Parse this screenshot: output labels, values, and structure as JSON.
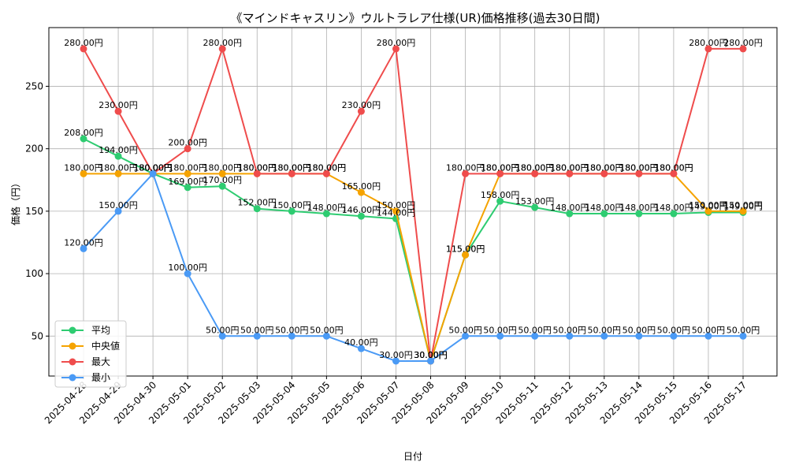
{
  "chart_data": {
    "type": "line",
    "title": "《マインドキャスリン》ウルトラレア仕様(UR)価格推移(過去30日間)",
    "xlabel": "日付",
    "ylabel": "価格（円）",
    "ylim": [
      18,
      297
    ],
    "yticks": [
      50,
      100,
      150,
      200,
      250
    ],
    "grid": true,
    "legend_position": "lower-left",
    "label_suffix": "円",
    "categories": [
      "2025-04-28",
      "2025-04-29",
      "2025-04-30",
      "2025-05-01",
      "2025-05-02",
      "2025-05-03",
      "2025-05-04",
      "2025-05-05",
      "2025-05-06",
      "2025-05-07",
      "2025-05-08",
      "2025-05-09",
      "2025-05-10",
      "2025-05-11",
      "2025-05-12",
      "2025-05-13",
      "2025-05-14",
      "2025-05-15",
      "2025-05-16",
      "2025-05-17"
    ],
    "series": [
      {
        "name": "平均",
        "color": "#2ecc71",
        "values": [
          208,
          194,
          180,
          169,
          170,
          152,
          150,
          148,
          146,
          144,
          30,
          115,
          158,
          153,
          148,
          148,
          148,
          148,
          149,
          149
        ]
      },
      {
        "name": "中央値",
        "color": "#f5a300",
        "values": [
          180,
          180,
          180,
          180,
          180,
          180,
          180,
          180,
          165,
          150,
          30,
          115,
          180,
          180,
          180,
          180,
          180,
          180,
          150,
          150
        ]
      },
      {
        "name": "最大",
        "color": "#ef4c4c",
        "values": [
          280,
          230,
          180,
          200,
          280,
          180,
          180,
          180,
          230,
          280,
          30,
          180,
          180,
          180,
          180,
          180,
          180,
          180,
          280,
          280
        ]
      },
      {
        "name": "最小",
        "color": "#4a9af5",
        "values": [
          120,
          150,
          180,
          100,
          50,
          50,
          50,
          50,
          40,
          30,
          30,
          50,
          50,
          50,
          50,
          50,
          50,
          50,
          50,
          50
        ]
      }
    ]
  }
}
